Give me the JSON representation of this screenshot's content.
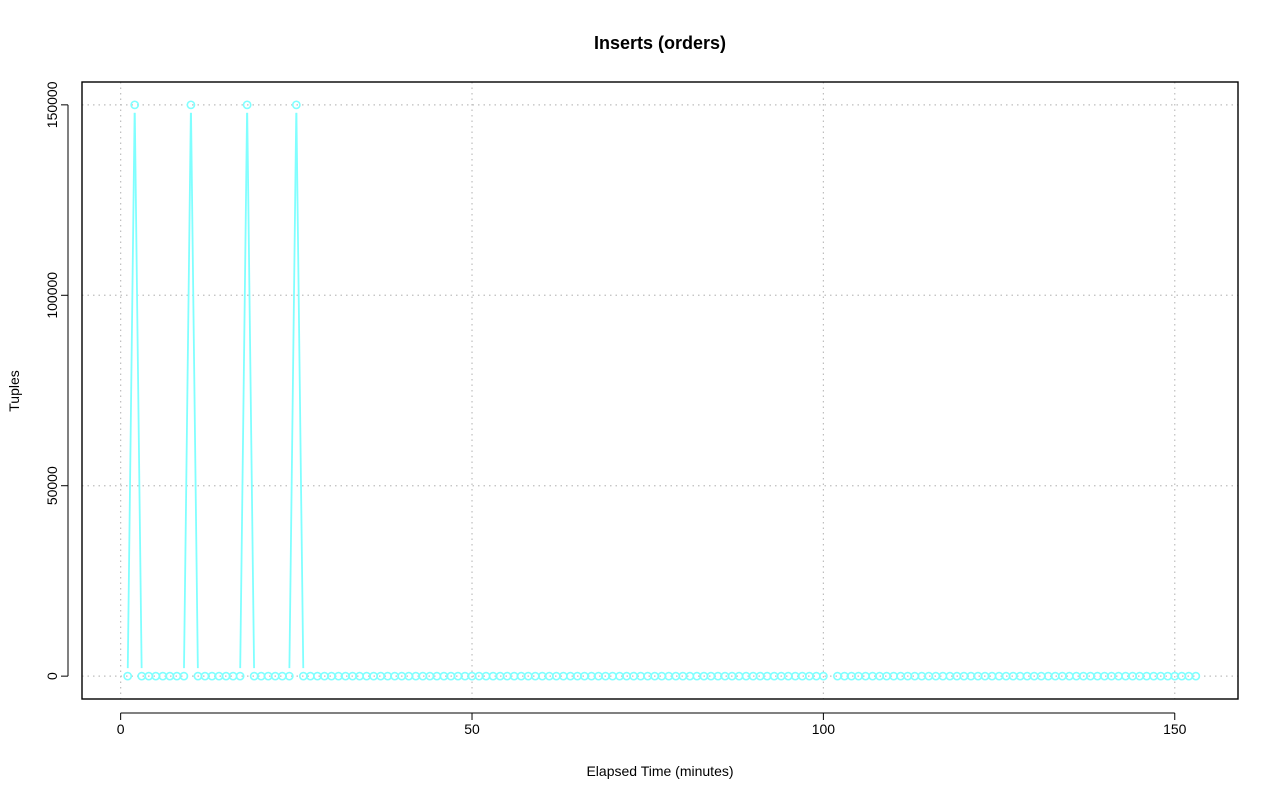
{
  "chart_data": {
    "type": "line",
    "title": "Inserts (orders)",
    "xlabel": "Elapsed Time (minutes)",
    "ylabel": "Tuples",
    "xlim": [
      -5.5,
      159
    ],
    "ylim": [
      -6000,
      156000
    ],
    "x_ticks": [
      0,
      50,
      100,
      150
    ],
    "y_ticks": [
      0,
      50000,
      100000,
      150000
    ],
    "x_tick_labels": [
      "0",
      "50",
      "100",
      "150"
    ],
    "y_tick_labels": [
      "0",
      "50000",
      "100000",
      "150000"
    ],
    "grid": true,
    "series": [
      {
        "name": "inserts",
        "color": "#80ffff",
        "x": [
          1,
          2,
          3,
          4,
          5,
          6,
          7,
          8,
          9,
          10,
          11,
          12,
          13,
          14,
          15,
          16,
          17,
          18,
          19,
          20,
          21,
          22,
          23,
          24,
          25,
          26,
          27,
          28,
          29,
          30,
          31,
          32,
          33,
          34,
          35,
          36,
          37,
          38,
          39,
          40,
          41,
          42,
          43,
          44,
          45,
          46,
          47,
          48,
          49,
          50,
          51,
          52,
          53,
          54,
          55,
          56,
          57,
          58,
          59,
          60,
          61,
          62,
          63,
          64,
          65,
          66,
          67,
          68,
          69,
          70,
          71,
          72,
          73,
          74,
          75,
          76,
          77,
          78,
          79,
          80,
          81,
          82,
          83,
          84,
          85,
          86,
          87,
          88,
          89,
          90,
          91,
          92,
          93,
          94,
          95,
          96,
          97,
          98,
          99,
          100,
          102,
          103,
          104,
          105,
          106,
          107,
          108,
          109,
          110,
          111,
          112,
          113,
          114,
          115,
          116,
          117,
          118,
          119,
          120,
          121,
          122,
          123,
          124,
          125,
          126,
          127,
          128,
          129,
          130,
          131,
          132,
          133,
          134,
          135,
          136,
          137,
          138,
          139,
          140,
          141,
          142,
          143,
          144,
          145,
          146,
          147,
          148,
          149,
          150,
          151,
          152,
          153
        ],
        "values": [
          0,
          150000,
          0,
          0,
          0,
          0,
          0,
          0,
          0,
          150000,
          0,
          0,
          0,
          0,
          0,
          0,
          0,
          150000,
          0,
          0,
          0,
          0,
          0,
          0,
          150000,
          0,
          0,
          0,
          0,
          0,
          0,
          0,
          0,
          0,
          0,
          0,
          0,
          0,
          0,
          0,
          0,
          0,
          0,
          0,
          0,
          0,
          0,
          0,
          0,
          0,
          0,
          0,
          0,
          0,
          0,
          0,
          0,
          0,
          0,
          0,
          0,
          0,
          0,
          0,
          0,
          0,
          0,
          0,
          0,
          0,
          0,
          0,
          0,
          0,
          0,
          0,
          0,
          0,
          0,
          0,
          0,
          0,
          0,
          0,
          0,
          0,
          0,
          0,
          0,
          0,
          0,
          0,
          0,
          0,
          0,
          0,
          0,
          0,
          0,
          0,
          0,
          0,
          0,
          0,
          0,
          0,
          0,
          0,
          0,
          0,
          0,
          0,
          0,
          0,
          0,
          0,
          0,
          0,
          0,
          0,
          0,
          0,
          0,
          0,
          0,
          0,
          0,
          0,
          0,
          0,
          0,
          0,
          0,
          0,
          0,
          0,
          0,
          0,
          0,
          0,
          0,
          0,
          0,
          0,
          0,
          0,
          0,
          0,
          0,
          0,
          0,
          0
        ]
      }
    ]
  }
}
